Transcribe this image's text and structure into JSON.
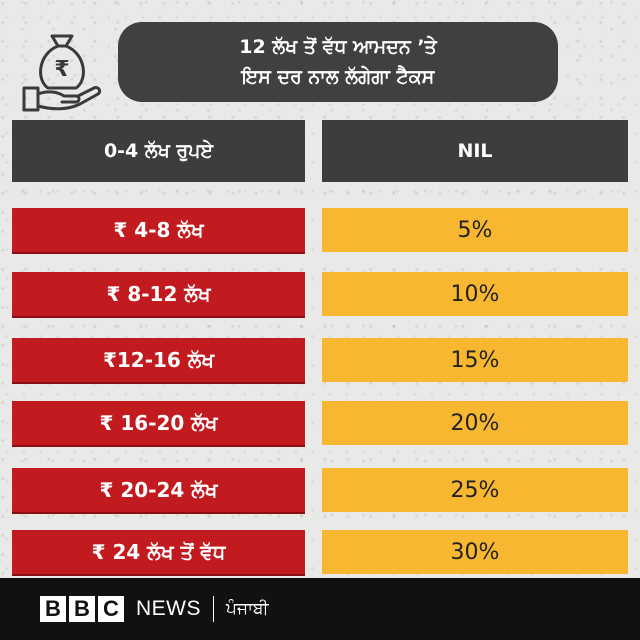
{
  "title": {
    "line1": "12 ਲੱਖ ਤੋਂ ਵੱਧ ਆਮਦਨ ’ਤੇ",
    "line2": "ਇਸ ਦਰ ਨਾਲ  ਲੱਗੇਗਾ ਟੈਕਸ"
  },
  "icon": {
    "name": "rupee-money-bag-in-hand-icon",
    "glyph": "₹"
  },
  "table": {
    "header": {
      "range": "0-4 ਲੱਖ ਰੁਪਏ",
      "rate": "NIL"
    },
    "rows": [
      {
        "range": "₹ 4-8 ਲੱਖ",
        "rate": "5%"
      },
      {
        "range": "₹ 8-12 ਲੱਖ",
        "rate": "10%"
      },
      {
        "range": "₹12-16 ਲੱਖ",
        "rate": "15%"
      },
      {
        "range": "₹ 16-20 ਲੱਖ",
        "rate": "20%"
      },
      {
        "range": "₹ 20-24 ਲੱਖ",
        "rate": "25%"
      },
      {
        "range": "₹ 24 ਲੱਖ ਤੋਂ ਵੱਧ",
        "rate": "30%"
      }
    ]
  },
  "footer": {
    "bbc_letters": [
      "B",
      "B",
      "C"
    ],
    "news": "NEWS",
    "separator": "|",
    "language": "ਪੰਜਾਬੀ"
  },
  "colors": {
    "title_bg": "#3f4040",
    "header_bg": "#3c3d3d",
    "range_red": "#c21b1f",
    "rate_yellow": "#f7b731",
    "footer_bg": "#111111"
  }
}
